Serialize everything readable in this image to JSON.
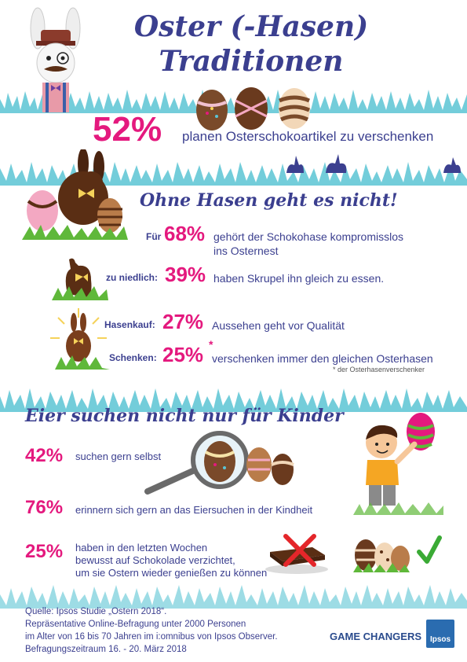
{
  "title_line1": "Oster (-Hasen)",
  "title_line2": "Traditionen",
  "headline": {
    "pct": "52%",
    "text": "planen Osterschokoartikel zu verschenken"
  },
  "section1": {
    "heading": "Ohne Hasen geht es nicht!",
    "rows": [
      {
        "label": "Für",
        "pct": "68%",
        "text1": "gehört der Schokohase kompromisslos",
        "text2": "ins Osternest"
      },
      {
        "label": "zu niedlich:",
        "pct": "39%",
        "text1": "haben Skrupel ihn gleich zu essen."
      },
      {
        "label": "Hasenkauf:",
        "pct": "27%",
        "text1": "Aussehen geht vor Qualität"
      },
      {
        "label": "Schenken:",
        "pct": "25%",
        "sup": "*",
        "text1": "verschenken immer den gleichen Osterhasen"
      }
    ],
    "footnote": "* der Osterhasenverschenker"
  },
  "section2": {
    "heading": "Eier suchen nicht nur für Kinder",
    "rows": [
      {
        "pct": "42%",
        "text1": "suchen gern selbst"
      },
      {
        "pct": "76%",
        "text1": "erinnern sich gern an das Eiersuchen in der Kindheit"
      },
      {
        "pct": "25%",
        "text1": "haben in den letzten Wochen",
        "text2": "bewusst auf Schokolade verzichtet,",
        "text3": "um sie Ostern wieder genießen zu können"
      }
    ]
  },
  "source": {
    "line1": "Quelle: Ipsos Studie „Ostern 2018“.",
    "line2": "Repräsentative Online-Befragung unter 2000 Personen",
    "line3": "im Alter von 16 bis 70 Jahren im i:omnibus von Ipsos Observer.",
    "line4": "Befragungszeitraum 16. - 20. März 2018"
  },
  "brand": {
    "tagline": "GAME CHANGERS",
    "logo": "Ipsos"
  },
  "colors": {
    "pink": "#e4197e",
    "navy": "#3b3f8f",
    "grass": "#5bc4d4",
    "chocolate": "#5a2e14"
  },
  "icons": [
    "bunny-mascot-icon",
    "easter-egg-icon",
    "chocolate-bunny-icon",
    "magnifier-icon",
    "boy-with-egg-icon",
    "cross-mark-icon",
    "check-mark-icon",
    "sunburst-bunny-icon"
  ]
}
